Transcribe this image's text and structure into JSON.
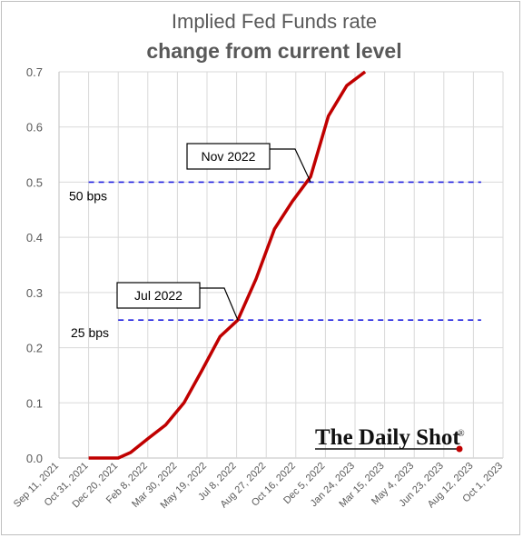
{
  "chart_data": {
    "type": "line",
    "title": "Implied Fed Funds rate",
    "subtitle": "change from current level",
    "ylim": [
      0,
      0.7
    ],
    "y_ticks": [
      "0.0",
      "0.1",
      "0.2",
      "0.3",
      "0.4",
      "0.5",
      "0.6",
      "0.7"
    ],
    "x_ticks": [
      "Sep 11, 2021",
      "Oct 31, 2021",
      "Dec 20, 2021",
      "Feb 8, 2022",
      "Mar 30, 2022",
      "May 19, 2022",
      "Jul 8, 2022",
      "Aug 27, 2022",
      "Oct 16, 2022",
      "Dec 5, 2022",
      "Jan 24, 2023",
      "Mar 15, 2023",
      "May 4, 2023",
      "Jun 23, 2023",
      "Aug 12, 2023",
      "Oct 1, 2023"
    ],
    "grid": true,
    "series": [
      {
        "color": "#c00000",
        "points": [
          {
            "x": "2021-10-31",
            "y": 0.0
          },
          {
            "x": "2021-12-20",
            "y": 0.0
          },
          {
            "x": "2022-01-10",
            "y": 0.01
          },
          {
            "x": "2022-02-08",
            "y": 0.035
          },
          {
            "x": "2022-03-10",
            "y": 0.06
          },
          {
            "x": "2022-04-10",
            "y": 0.1
          },
          {
            "x": "2022-05-10",
            "y": 0.158
          },
          {
            "x": "2022-06-10",
            "y": 0.22
          },
          {
            "x": "2022-07-10",
            "y": 0.25
          },
          {
            "x": "2022-08-10",
            "y": 0.325
          },
          {
            "x": "2022-09-10",
            "y": 0.415
          },
          {
            "x": "2022-10-10",
            "y": 0.465
          },
          {
            "x": "2022-11-10",
            "y": 0.51
          },
          {
            "x": "2022-12-10",
            "y": 0.62
          },
          {
            "x": "2023-01-10",
            "y": 0.675
          },
          {
            "x": "2023-02-10",
            "y": 0.703
          }
        ]
      }
    ],
    "reference_lines": [
      {
        "label": "50 bps",
        "y": 0.5,
        "x_start": "2021-10-31",
        "x_end": "2023-08-25",
        "color": "#1f1fe0"
      },
      {
        "label": "25 bps",
        "y": 0.25,
        "x_start": "2021-12-20",
        "x_end": "2023-08-25",
        "color": "#1f1fe0"
      }
    ],
    "annotations": [
      {
        "text": "Nov 2022",
        "target": {
          "x": "2022-11-10",
          "y": 0.5
        }
      },
      {
        "text": "Jul 2022",
        "target": {
          "x": "2022-07-10",
          "y": 0.25
        }
      }
    ]
  },
  "brand": {
    "name": "The Daily Shot",
    "registered": "®",
    "dot_color": "#c00000"
  }
}
